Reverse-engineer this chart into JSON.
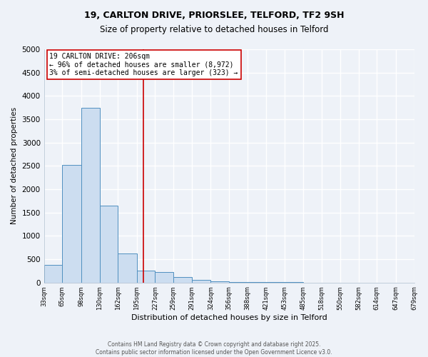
{
  "title_line1": "19, CARLTON DRIVE, PRIORSLEE, TELFORD, TF2 9SH",
  "title_line2": "Size of property relative to detached houses in Telford",
  "xlabel": "Distribution of detached houses by size in Telford",
  "ylabel": "Number of detached properties",
  "bin_edges": [
    33,
    65,
    98,
    130,
    162,
    195,
    227,
    259,
    291,
    324,
    356,
    388,
    421,
    453,
    485,
    518,
    550,
    582,
    614,
    647,
    679
  ],
  "bar_heights": [
    375,
    2525,
    3750,
    1650,
    620,
    250,
    225,
    110,
    55,
    30,
    10,
    5,
    3,
    2,
    1,
    0,
    0,
    0,
    0,
    0
  ],
  "bar_color": "#ccddf0",
  "bar_edge_color": "#5090c0",
  "vline_x": 206,
  "vline_color": "#cc0000",
  "annotation_line1": "19 CARLTON DRIVE: 206sqm",
  "annotation_line2": "← 96% of detached houses are smaller (8,972)",
  "annotation_line3": "3% of semi-detached houses are larger (323) →",
  "annotation_box_color": "white",
  "annotation_box_edge": "#cc0000",
  "ylim": [
    0,
    5000
  ],
  "yticks": [
    0,
    500,
    1000,
    1500,
    2000,
    2500,
    3000,
    3500,
    4000,
    4500,
    5000
  ],
  "tick_labels": [
    "33sqm",
    "65sqm",
    "98sqm",
    "130sqm",
    "162sqm",
    "195sqm",
    "227sqm",
    "259sqm",
    "291sqm",
    "324sqm",
    "356sqm",
    "388sqm",
    "421sqm",
    "453sqm",
    "485sqm",
    "518sqm",
    "550sqm",
    "582sqm",
    "614sqm",
    "647sqm",
    "679sqm"
  ],
  "footnote1": "Contains HM Land Registry data © Crown copyright and database right 2025.",
  "footnote2": "Contains public sector information licensed under the Open Government Licence v3.0.",
  "bg_color": "#eef2f8",
  "grid_color": "white"
}
